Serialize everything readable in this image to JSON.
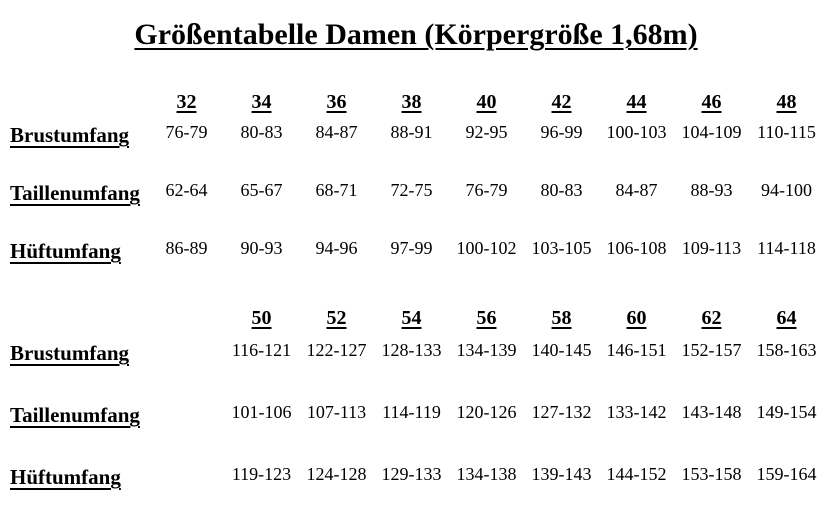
{
  "title": "Größentabelle Damen (Körpergröße 1,68m)",
  "table": {
    "sections": [
      {
        "sizes": [
          "32",
          "34",
          "36",
          "38",
          "40",
          "42",
          "44",
          "46",
          "48"
        ],
        "rows": [
          {
            "label": "Brustumfang",
            "values": [
              "76-79",
              "80-83",
              "84-87",
              "88-91",
              "92-95",
              "96-99",
              "100-103",
              "104-109",
              "110-115"
            ]
          },
          {
            "label": "Taillenumfang",
            "values": [
              "62-64",
              "65-67",
              "68-71",
              "72-75",
              "76-79",
              "80-83",
              "84-87",
              "88-93",
              "94-100"
            ]
          },
          {
            "label": "Hüftumfang",
            "values": [
              "86-89",
              "90-93",
              "94-96",
              "97-99",
              "100-102",
              "103-105",
              "106-108",
              "109-113",
              "114-118"
            ]
          }
        ]
      },
      {
        "sizes": [
          "50",
          "52",
          "54",
          "56",
          "58",
          "60",
          "62",
          "64"
        ],
        "rows": [
          {
            "label": "Brustumfang",
            "values": [
              "116-121",
              "122-127",
              "128-133",
              "134-139",
              "140-145",
              "146-151",
              "152-157",
              "158-163"
            ]
          },
          {
            "label": "Taillenumfang",
            "values": [
              "101-106",
              "107-113",
              "114-119",
              "120-126",
              "127-132",
              "133-142",
              "143-148",
              "149-154"
            ]
          },
          {
            "label": "Hüftumfang",
            "values": [
              "119-123",
              "124-128",
              "129-133",
              "134-138",
              "139-143",
              "144-152",
              "153-158",
              "159-164"
            ]
          }
        ]
      }
    ]
  }
}
